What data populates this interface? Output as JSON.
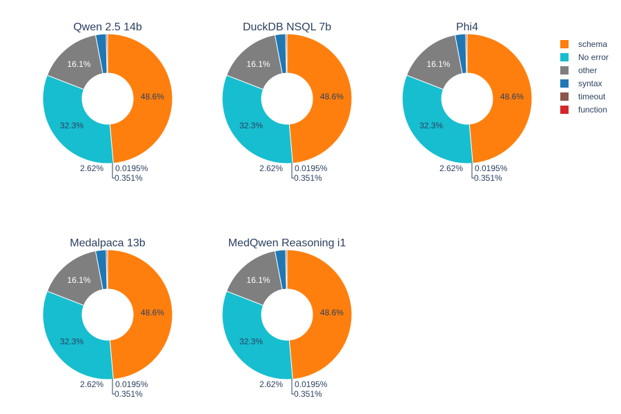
{
  "chart_data": {
    "type": "pie",
    "hole": true,
    "categories": [
      "schema",
      "No error",
      "other",
      "syntax",
      "timeout",
      "function"
    ],
    "colors": [
      "#ff7f0e",
      "#17becf",
      "#7f7f7f",
      "#1f77b4",
      "#8c564b",
      "#d62728"
    ],
    "legend": {
      "position": "top-right",
      "entries": [
        "schema",
        "No error",
        "other",
        "syntax",
        "timeout",
        "function"
      ]
    },
    "charts": [
      {
        "title": "Qwen 2.5 14b",
        "values": [
          48.6,
          32.3,
          16.1,
          2.62,
          0.351,
          0.0195
        ],
        "labels": [
          "48.6%",
          "32.3%",
          "16.1%",
          "2.62%",
          "0.351%",
          "0.0195%"
        ]
      },
      {
        "title": "DuckDB NSQL 7b",
        "values": [
          48.6,
          32.3,
          16.1,
          2.62,
          0.351,
          0.0195
        ],
        "labels": [
          "48.6%",
          "32.3%",
          "16.1%",
          "2.62%",
          "0.351%",
          "0.0195%"
        ]
      },
      {
        "title": "Phi4",
        "values": [
          48.6,
          32.3,
          16.1,
          2.62,
          0.351,
          0.0195
        ],
        "labels": [
          "48.6%",
          "32.3%",
          "16.1%",
          "2.62%",
          "0.351%",
          "0.0195%"
        ]
      },
      {
        "title": "Medalpaca 13b",
        "values": [
          48.6,
          32.3,
          16.1,
          2.62,
          0.351,
          0.0195
        ],
        "labels": [
          "48.6%",
          "32.3%",
          "16.1%",
          "2.62%",
          "0.351%",
          "0.0195%"
        ]
      },
      {
        "title": "MedQwen Reasoning i1",
        "values": [
          48.6,
          32.3,
          16.1,
          2.62,
          0.351,
          0.0195
        ],
        "labels": [
          "48.6%",
          "32.3%",
          "16.1%",
          "2.62%",
          "0.351%",
          "0.0195%"
        ]
      }
    ]
  }
}
